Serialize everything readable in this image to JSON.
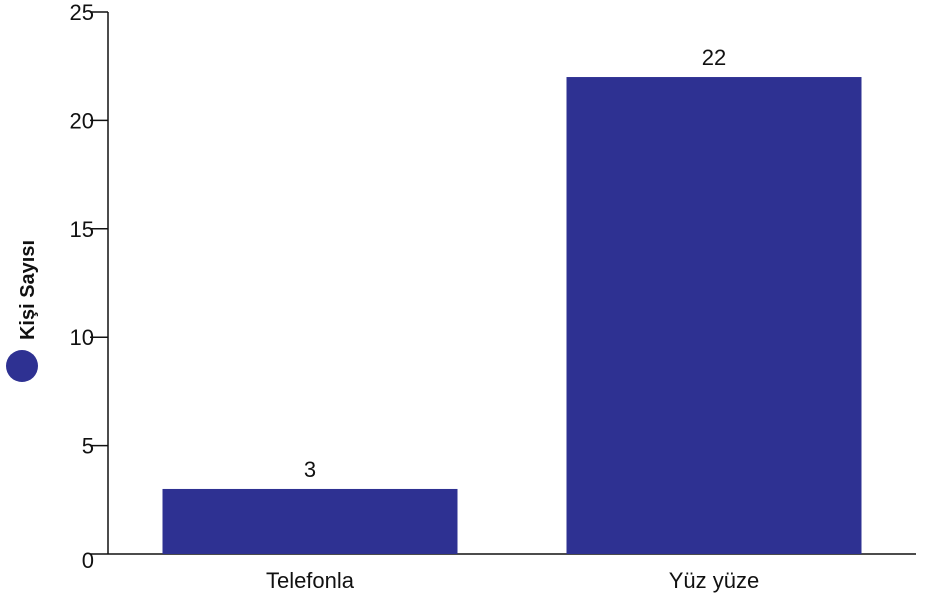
{
  "chart_data": {
    "type": "bar",
    "categories": [
      "Telefonla",
      "Yüz yüze"
    ],
    "series": [
      {
        "name": "Kişi Sayısı",
        "values": [
          3,
          22
        ],
        "color": "#2e3192"
      }
    ],
    "title": "",
    "xlabel": "",
    "ylabel": "",
    "ylim": [
      0,
      25
    ],
    "yticks": [
      0,
      5,
      10,
      15,
      20,
      25
    ],
    "data_labels": true,
    "grid": false,
    "legend": {
      "position": "left",
      "orientation": "vertical"
    }
  }
}
